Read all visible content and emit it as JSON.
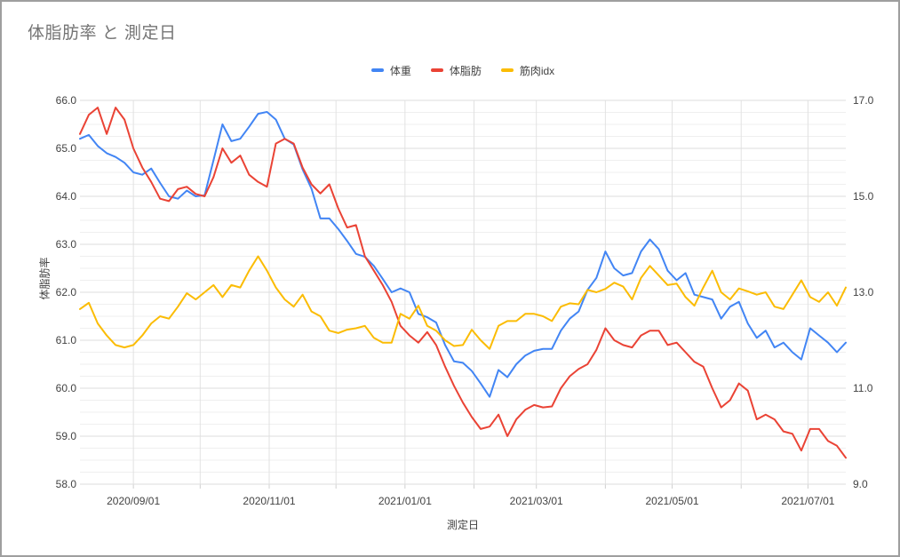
{
  "chart_data": {
    "type": "line",
    "title": "体脂肪率 と 測定日",
    "xlabel": "測定日",
    "ylabel_left": "体脂肪率",
    "legend_position": "top",
    "grid": true,
    "x_start_date": "2020-08-08",
    "x_end_date": "2021-07-18",
    "x_step_days": 4,
    "x_tick_labels": [
      "2020/09/01",
      "2020/11/01",
      "2021/01/01",
      "2021/03/01",
      "2021/05/01",
      "2021/07/01"
    ],
    "ylim_left": [
      58.0,
      66.0
    ],
    "ylim_right": [
      9.0,
      17.0
    ],
    "y_major_step_left": 1.0,
    "y_minor_step_left": 0.25,
    "y_tick_labels_left": [
      "66.0",
      "65.0",
      "64.0",
      "63.0",
      "62.0",
      "61.0",
      "60.0",
      "59.0",
      "58.0"
    ],
    "y_tick_labels_right": [
      "17.0",
      "15.0",
      "13.0",
      "11.0",
      "9.0"
    ],
    "series": [
      {
        "name": "体重",
        "axis": "left",
        "color": "#4285F4",
        "values": [
          65.2,
          65.28,
          65.05,
          64.9,
          64.82,
          64.7,
          64.5,
          64.45,
          64.58,
          64.28,
          64.0,
          63.95,
          64.12,
          64.0,
          64.02,
          64.75,
          65.5,
          65.15,
          65.2,
          65.45,
          65.72,
          65.76,
          65.6,
          65.2,
          65.08,
          64.56,
          64.16,
          63.54,
          63.54,
          63.32,
          63.07,
          62.8,
          62.74,
          62.55,
          62.28,
          62.0,
          62.08,
          62.0,
          61.55,
          61.48,
          61.37,
          60.9,
          60.56,
          60.53,
          60.36,
          60.1,
          59.82,
          60.38,
          60.23,
          60.5,
          60.68,
          60.78,
          60.82,
          60.82,
          61.2,
          61.45,
          61.6,
          62.05,
          62.3,
          62.85,
          62.5,
          62.35,
          62.4,
          62.85,
          63.1,
          62.9,
          62.45,
          62.25,
          62.4,
          61.95,
          61.9,
          61.85,
          61.45,
          61.7,
          61.8,
          61.35,
          61.05,
          61.2,
          60.85,
          60.95,
          60.75,
          60.6,
          61.25,
          61.1,
          60.95,
          60.75,
          60.95
        ]
      },
      {
        "name": "体脂肪",
        "axis": "left",
        "color": "#EA4335",
        "values": [
          65.3,
          65.7,
          65.85,
          65.3,
          65.85,
          65.6,
          65.0,
          64.6,
          64.3,
          63.95,
          63.9,
          64.15,
          64.2,
          64.05,
          64.0,
          64.4,
          65.0,
          64.7,
          64.85,
          64.45,
          64.3,
          64.2,
          65.1,
          65.2,
          65.1,
          64.6,
          64.25,
          64.06,
          64.25,
          63.75,
          63.35,
          63.4,
          62.75,
          62.45,
          62.15,
          61.8,
          61.3,
          61.1,
          60.95,
          61.17,
          60.9,
          60.45,
          60.05,
          59.7,
          59.4,
          59.15,
          59.2,
          59.45,
          59.0,
          59.35,
          59.55,
          59.65,
          59.6,
          59.62,
          60.0,
          60.25,
          60.4,
          60.5,
          60.8,
          61.25,
          61.0,
          60.9,
          60.85,
          61.1,
          61.2,
          61.2,
          60.9,
          60.95,
          60.75,
          60.55,
          60.45,
          60.0,
          59.6,
          59.75,
          60.1,
          59.95,
          59.35,
          59.45,
          59.35,
          59.1,
          59.05,
          58.7,
          59.15,
          59.15,
          58.9,
          58.8,
          58.55
        ]
      },
      {
        "name": "筋肉idx",
        "axis": "right",
        "color": "#FBBC04",
        "values": [
          12.65,
          12.78,
          12.35,
          12.1,
          11.9,
          11.85,
          11.9,
          12.1,
          12.35,
          12.5,
          12.45,
          12.7,
          12.98,
          12.85,
          13.0,
          13.15,
          12.9,
          13.15,
          13.1,
          13.45,
          13.75,
          13.45,
          13.1,
          12.85,
          12.7,
          12.95,
          12.6,
          12.5,
          12.2,
          12.15,
          12.22,
          12.25,
          12.3,
          12.05,
          11.95,
          11.95,
          12.55,
          12.45,
          12.72,
          12.3,
          12.2,
          12.0,
          11.88,
          11.9,
          12.22,
          12.0,
          11.82,
          12.3,
          12.4,
          12.4,
          12.55,
          12.55,
          12.5,
          12.4,
          12.7,
          12.77,
          12.75,
          13.05,
          13.0,
          13.07,
          13.2,
          13.12,
          12.85,
          13.3,
          13.55,
          13.35,
          13.15,
          13.18,
          12.9,
          12.72,
          13.1,
          13.45,
          13.0,
          12.85,
          13.08,
          13.02,
          12.95,
          13.0,
          12.7,
          12.65,
          12.95,
          13.25,
          12.9,
          12.8,
          13.0,
          12.72,
          13.1
        ]
      }
    ]
  }
}
